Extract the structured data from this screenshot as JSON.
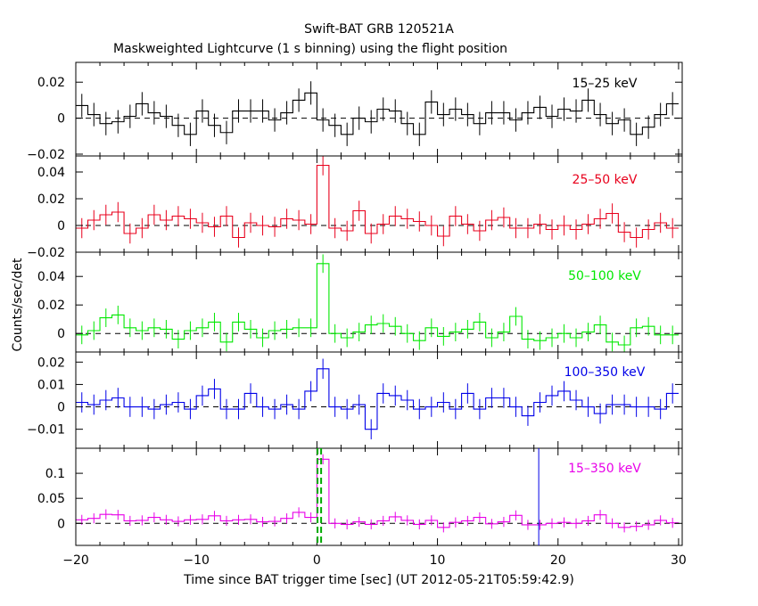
{
  "title": "Swift-BAT GRB 120521A",
  "subtitle": "Maskweighted Lightcurve (1 s binning) using the flight position",
  "xlabel": "Time since BAT trigger time [sec] (UT 2012-05-21T05:59:42.9)",
  "ylabel": "Counts/sec/det",
  "chart_data": [
    {
      "type": "line",
      "band_label": "15–25 keV",
      "color": "#000000",
      "xlim": [
        -20,
        30.3
      ],
      "ylim": [
        -0.021,
        0.031
      ],
      "yticks": [
        -0.02,
        0,
        0.02
      ],
      "ytick_labels": [
        "−0.02",
        "0",
        "0.02"
      ],
      "series": [
        {
          "x_start": -20,
          "bin_width": 1,
          "values": [
            0.007,
            0.002,
            -0.003,
            -0.002,
            0.001,
            0.008,
            0.003,
            0.001,
            -0.004,
            -0.009,
            0.004,
            -0.004,
            -0.008,
            0.004,
            0.004,
            0.004,
            -0.001,
            0.003,
            0.01,
            0.014,
            -0.001,
            -0.004,
            -0.009,
            0.0,
            -0.002,
            0.005,
            0.004,
            -0.003,
            -0.009,
            0.009,
            0.002,
            0.005,
            0.002,
            -0.003,
            0.003,
            0.003,
            -0.001,
            0.003,
            0.006,
            0.001,
            0.005,
            0.004,
            0.01,
            0.002,
            -0.003,
            -0.001,
            -0.009,
            -0.005,
            0.002,
            0.008
          ],
          "error": 0.0065
        }
      ]
    },
    {
      "type": "line",
      "band_label": "25–50 keV",
      "color": "#e8001c",
      "xlim": [
        -20,
        30.3
      ],
      "ylim": [
        -0.02,
        0.052
      ],
      "yticks": [
        -0.02,
        0,
        0.02,
        0.04
      ],
      "ytick_labels": [
        "−0.02",
        "0",
        "0.02",
        "0.04"
      ],
      "series": [
        {
          "x_start": -20,
          "bin_width": 1,
          "values": [
            -0.002,
            0.004,
            0.008,
            0.01,
            -0.006,
            -0.002,
            0.008,
            0.004,
            0.007,
            0.005,
            0.002,
            -0.001,
            0.007,
            -0.009,
            0.002,
            0.0,
            -0.001,
            0.005,
            0.004,
            0.001,
            0.045,
            -0.002,
            -0.004,
            0.011,
            -0.006,
            0.001,
            0.007,
            0.005,
            0.003,
            0.0,
            -0.008,
            0.007,
            0.001,
            -0.004,
            0.004,
            0.006,
            -0.002,
            -0.002,
            0.001,
            -0.003,
            0.0,
            -0.003,
            0.001,
            0.005,
            0.009,
            -0.005,
            -0.009,
            -0.003,
            0.002,
            -0.002
          ],
          "error": 0.0075
        }
      ]
    },
    {
      "type": "line",
      "band_label": "50–100 keV",
      "color": "#00e800",
      "xlim": [
        -20,
        30.3
      ],
      "ylim": [
        -0.013,
        0.057
      ],
      "yticks": [
        0,
        0.02,
        0.04
      ],
      "ytick_labels": [
        "0",
        "0.02",
        "0.04"
      ],
      "series": [
        {
          "x_start": -20,
          "bin_width": 1,
          "values": [
            -0.001,
            0.002,
            0.011,
            0.013,
            0.004,
            0.002,
            0.004,
            0.003,
            -0.004,
            0.002,
            0.004,
            0.008,
            -0.006,
            0.008,
            0.003,
            -0.003,
            0.002,
            0.003,
            0.004,
            0.004,
            0.049,
            0.0,
            -0.003,
            0.001,
            0.006,
            0.007,
            0.005,
            0.0,
            -0.005,
            0.004,
            -0.002,
            0.001,
            0.003,
            0.008,
            -0.003,
            0.001,
            0.012,
            -0.004,
            -0.005,
            -0.003,
            0.0,
            -0.003,
            0.001,
            0.006,
            -0.006,
            -0.008,
            0.004,
            0.005,
            -0.001,
            -0.001
          ],
          "error": 0.0065
        }
      ]
    },
    {
      "type": "line",
      "band_label": "100–350 keV",
      "color": "#0000e8",
      "xlim": [
        -20,
        30.3
      ],
      "ylim": [
        -0.0185,
        0.0245
      ],
      "yticks": [
        -0.01,
        0,
        0.01,
        0.02
      ],
      "ytick_labels": [
        "−0.01",
        "0",
        "0.01",
        "0.02"
      ],
      "series": [
        {
          "x_start": -20,
          "bin_width": 1,
          "values": [
            0.002,
            0.001,
            0.003,
            0.004,
            0.0,
            0.0,
            -0.001,
            0.001,
            0.002,
            -0.001,
            0.005,
            0.008,
            -0.001,
            -0.001,
            0.006,
            0.0,
            -0.001,
            0.001,
            -0.001,
            0.007,
            0.017,
            0.0,
            -0.001,
            0.001,
            -0.01,
            0.006,
            0.005,
            0.003,
            -0.001,
            0.0,
            0.002,
            -0.001,
            0.006,
            -0.001,
            0.004,
            0.004,
            0.0,
            -0.004,
            0.002,
            0.005,
            0.007,
            0.003,
            0.0,
            -0.003,
            0.001,
            0.001,
            0.0,
            0.0,
            -0.001,
            0.006
          ],
          "error": 0.0045
        }
      ]
    },
    {
      "type": "line",
      "band_label": "15–350 keV",
      "color": "#e800e8",
      "xlim": [
        -20,
        30.3
      ],
      "ylim": [
        -0.044,
        0.15
      ],
      "yticks": [
        0,
        0.05,
        0.1
      ],
      "ytick_labels": [
        "0",
        "0.05",
        "0.1"
      ],
      "series": [
        {
          "x_start": -20,
          "bin_width": 1,
          "values": [
            0.007,
            0.01,
            0.018,
            0.017,
            0.005,
            0.006,
            0.012,
            0.007,
            0.004,
            0.007,
            0.008,
            0.015,
            0.005,
            0.007,
            0.008,
            0.003,
            0.004,
            0.01,
            0.022,
            0.012,
            0.128,
            0.0,
            -0.002,
            0.003,
            -0.002,
            0.005,
            0.013,
            0.006,
            -0.002,
            0.006,
            -0.008,
            0.002,
            0.005,
            0.012,
            -0.001,
            0.003,
            0.016,
            -0.003,
            -0.003,
            0.0,
            0.002,
            0.0,
            0.005,
            0.017,
            0.0,
            -0.008,
            -0.006,
            -0.003,
            0.006,
            0.001
          ],
          "error": 0.01
        }
      ]
    }
  ],
  "x_axis": {
    "ticks": [
      -20,
      -10,
      0,
      10,
      20,
      30
    ],
    "tick_labels": [
      "−20",
      "−10",
      "0",
      "10",
      "20",
      "30"
    ]
  },
  "markers": {
    "green_dashed_x": [
      0.05,
      0.35
    ],
    "blue_line_x": 18.4
  }
}
